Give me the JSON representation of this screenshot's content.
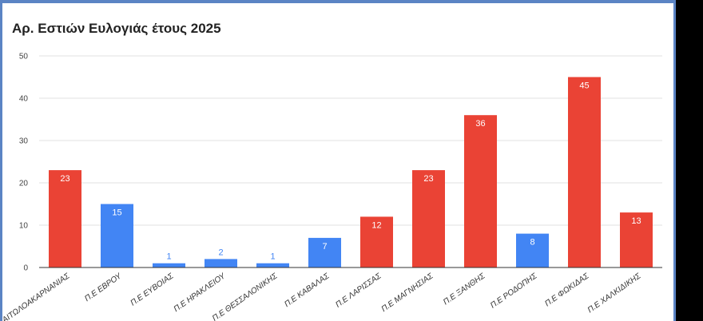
{
  "chart_data": {
    "type": "bar",
    "title": "Αρ. Εστιών Ευλογιάς έτους 2025",
    "xlabel": "",
    "ylabel": "",
    "ylim": [
      0,
      50
    ],
    "yticks": [
      0,
      10,
      20,
      30,
      40,
      50
    ],
    "grid": true,
    "legend": "none",
    "categories": [
      "Π.Ε ΑΙΤΩΛΟΑΚΑΡΝΑΝΙΑΣ",
      "Π.Ε ΕΒΡΟΥ",
      "Π.Ε ΕΥΒΟΙΑΣ",
      "Π.Ε ΗΡΑΚΛΕΙΟΥ",
      "Π.Ε ΘΕΣΣΑΛΟΝΙΚΗΣ",
      "Π.Ε ΚΑΒΑΛΑΣ",
      "Π.Ε ΛΑΡΙΣΣΑΣ",
      "Π.Ε ΜΑΓΝΗΣΙΑΣ",
      "Π.Ε ΞΑΝΘΗΣ",
      "Π.Ε ΡΟΔΟΠΗΣ",
      "Π.Ε ΦΩΚΙΔΑΣ",
      "Π.Ε ΧΑΛΚΙΔΙΚΗΣ"
    ],
    "values": [
      23,
      15,
      1,
      2,
      1,
      7,
      12,
      23,
      36,
      8,
      45,
      13
    ],
    "bar_colors": [
      "#ea4335",
      "#4285f4",
      "#4285f4",
      "#4285f4",
      "#4285f4",
      "#4285f4",
      "#ea4335",
      "#ea4335",
      "#ea4335",
      "#4285f4",
      "#ea4335",
      "#ea4335"
    ]
  },
  "colors": {
    "red": "#ea4335",
    "blue": "#4285f4",
    "grid": "#e0e0e0",
    "axis": "#333333"
  }
}
